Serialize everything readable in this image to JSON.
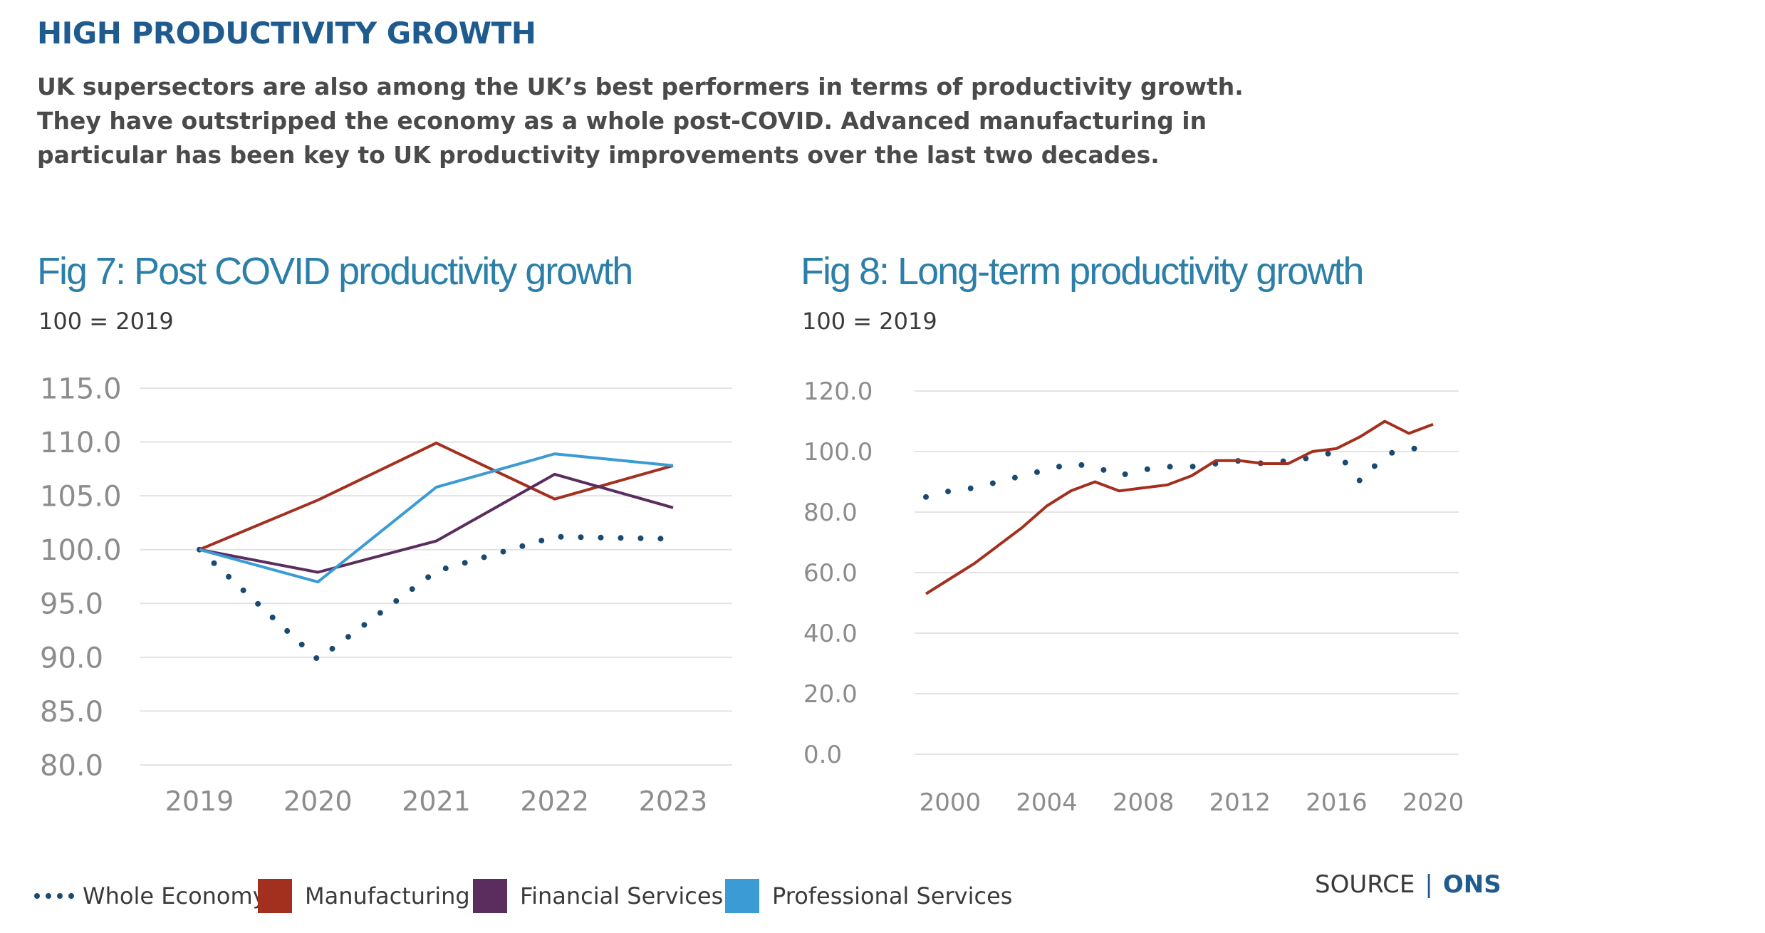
{
  "header": {
    "title": "HIGH PRODUCTIVITY GROWTH",
    "intro_lines": [
      "UK supersectors are also among the UK’s best performers in terms of productivity growth.",
      "They have outstripped the economy as a whole post-COVID. Advanced manufacturing in",
      "particular has been key to UK productivity improvements over the last two decades."
    ]
  },
  "legend": {
    "whole_economy": "Whole Economy",
    "manufacturing": "Manufacturing",
    "financial": "Financial Services",
    "professional": "Professional Services"
  },
  "source": {
    "label": "SOURCE",
    "separator": "|",
    "value": "ONS"
  },
  "colors": {
    "title": "#1f5b8e",
    "chart_title": "#2b7fa8",
    "whole_economy": "#1a4a72",
    "manufacturing": "#a3301e",
    "financial": "#5a2d5e",
    "professional": "#3a9bd5",
    "grid": "#e3e3e3",
    "tick": "#8c8c8c"
  },
  "chart_data": [
    {
      "type": "line",
      "title": "Fig 7: Post COVID productivity growth",
      "subtitle": "100 = 2019",
      "x": [
        2019,
        2020,
        2021,
        2022,
        2023
      ],
      "ylim": [
        80,
        115
      ],
      "yticks": [
        "115.0",
        "110.0",
        "105.0",
        "100.0",
        "95.0",
        "90.0",
        "85.0",
        "80.0"
      ],
      "xticks": [
        "2019",
        "2020",
        "2021",
        "2022",
        "2023"
      ],
      "series": [
        {
          "name": "Whole Economy",
          "style": "dotted",
          "values": [
            100,
            89.8,
            98.0,
            101.2,
            101.0
          ]
        },
        {
          "name": "Manufacturing",
          "style": "solid",
          "values": [
            100,
            104.6,
            109.9,
            104.7,
            107.8
          ]
        },
        {
          "name": "Financial Services",
          "style": "solid",
          "values": [
            100,
            97.9,
            100.8,
            107.0,
            103.9
          ]
        },
        {
          "name": "Professional Services",
          "style": "solid",
          "values": [
            100,
            97.0,
            105.8,
            108.9,
            107.8
          ]
        }
      ]
    },
    {
      "type": "line",
      "title": "Fig 8: Long-term productivity growth",
      "subtitle": "100 = 2019",
      "x": [
        1999,
        2000,
        2001,
        2002,
        2003,
        2004,
        2005,
        2006,
        2007,
        2008,
        2009,
        2010,
        2011,
        2012,
        2013,
        2014,
        2015,
        2016,
        2017,
        2018,
        2019,
        2020
      ],
      "ylim": [
        0,
        120
      ],
      "yticks": [
        "120.0",
        "100.0",
        "80.0",
        "60.0",
        "40.0",
        "20.0",
        "0.0"
      ],
      "xticks": [
        "2000",
        "2004",
        "2008",
        "2012",
        "2016",
        "2020"
      ],
      "series": [
        {
          "name": "Whole Economy",
          "style": "dotted",
          "values": [
            85,
            87,
            88,
            90,
            92,
            94,
            96,
            95,
            92,
            94,
            95,
            95,
            96,
            97,
            96,
            97,
            98,
            100,
            90,
            99,
            101,
            101
          ]
        },
        {
          "name": "Manufacturing",
          "style": "solid",
          "values": [
            53,
            58,
            63,
            69,
            75,
            82,
            87,
            90,
            87,
            88,
            89,
            92,
            97,
            97,
            96,
            96,
            100,
            101,
            105,
            110,
            106,
            109
          ]
        }
      ]
    }
  ]
}
